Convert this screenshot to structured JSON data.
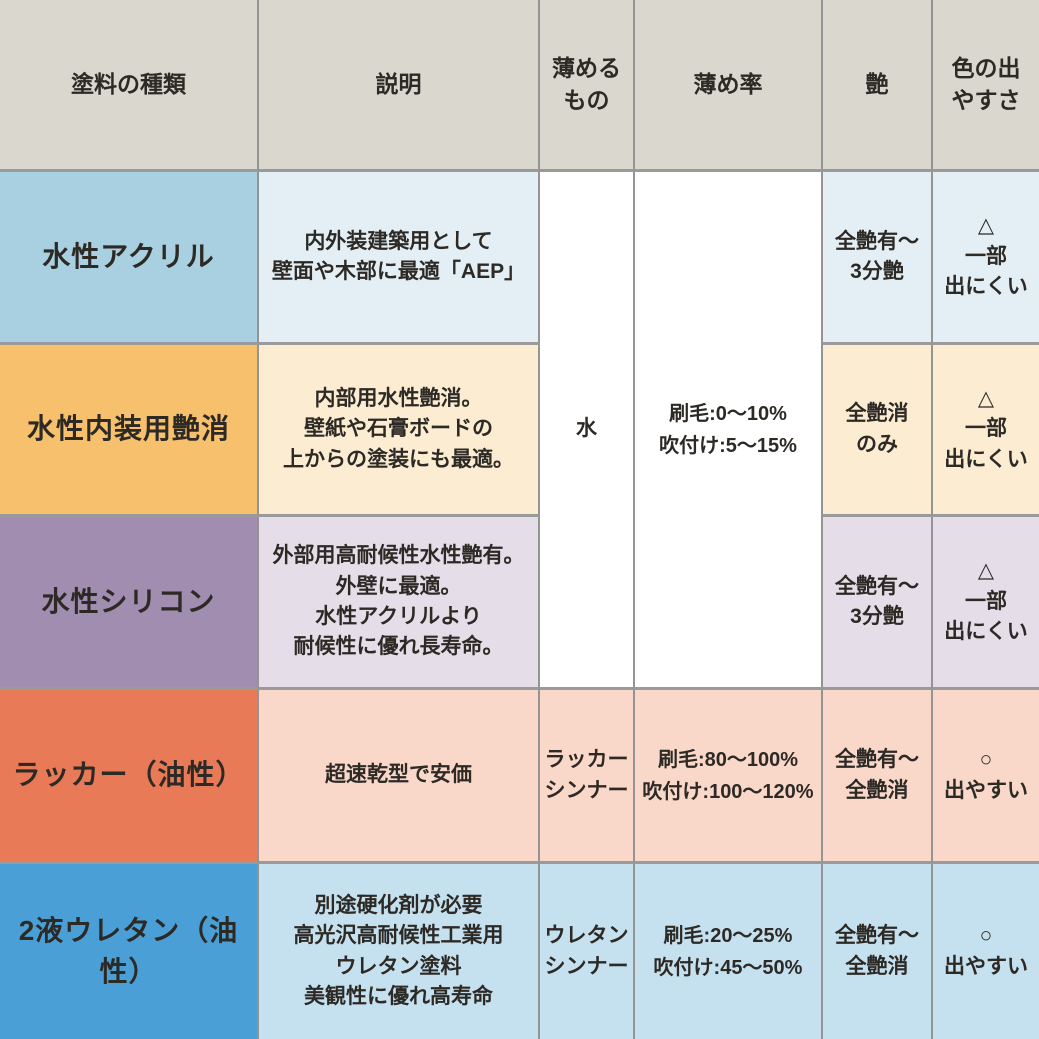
{
  "table": {
    "headers": [
      "塗料の種類",
      "説明",
      "薄める\nもの",
      "薄め率",
      "艶",
      "色の出\nやすさ"
    ],
    "rows": [
      {
        "name": "水性アクリル",
        "description": "内外装建築用として\n壁面や木部に最適「AEP」",
        "thinner": "水",
        "rate": "刷毛:0〜10%\n吹付け:5〜15%",
        "gloss": "全艶有〜\n3分艶",
        "color_ease": "△\n一部\n出にくい"
      },
      {
        "name": "水性内装用艶消",
        "description": "内部用水性艶消。\n壁紙や石膏ボードの\n上からの塗装にも最適。",
        "gloss": "全艶消\nのみ",
        "color_ease": "△\n一部\n出にくい"
      },
      {
        "name": "水性シリコン",
        "description": "外部用高耐候性水性艶有。\n外壁に最適。\n水性アクリルより\n耐候性に優れ長寿命。",
        "gloss": "全艶有〜\n3分艶",
        "color_ease": "△\n一部\n出にくい"
      },
      {
        "name": "ラッカー（油性）",
        "description": "超速乾型で安価",
        "thinner": "ラッカー\nシンナー",
        "rate": "刷毛:80〜100%\n吹付け:100〜120%",
        "gloss": "全艶有〜\n全艶消",
        "color_ease": "○\n出やすい"
      },
      {
        "name": "2液ウレタン（油性）",
        "description": "別途硬化剤が必要\n高光沢高耐候性工業用\nウレタン塗料\n美観性に優れ高寿命",
        "thinner": "ウレタン\nシンナー",
        "rate": "刷毛:20〜25%\n吹付け:45〜50%",
        "gloss": "全艶有〜\n全艶消",
        "color_ease": "○\n出やすい"
      }
    ]
  },
  "colors": {
    "header_bg": "#dad7cf",
    "grid_line": "#9a9a9a",
    "text": "#2d2a26",
    "merged_bg": "#ffffff",
    "rows": [
      {
        "name_bg": "#a9d0e0",
        "tint_bg": "#e4eff5"
      },
      {
        "name_bg": "#f7c06c",
        "tint_bg": "#fcecd2"
      },
      {
        "name_bg": "#a18db0",
        "tint_bg": "#e5dee9"
      },
      {
        "name_bg": "#e87a58",
        "tint_bg": "#f9d8c9"
      },
      {
        "name_bg": "#4aa0d6",
        "tint_bg": "#c5e0ef"
      }
    ]
  }
}
